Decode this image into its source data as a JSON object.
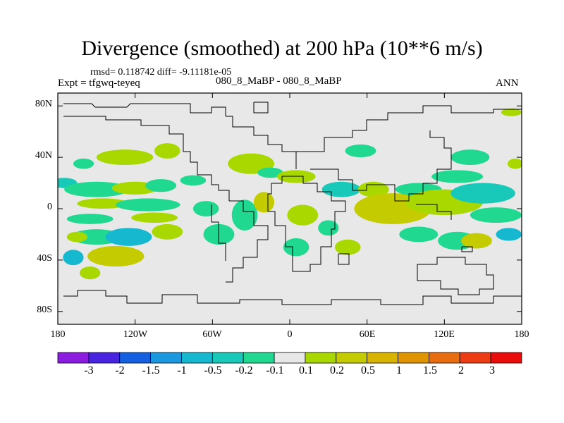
{
  "title": "Divergence (smoothed) at 200 hPa (10**6 m/s)",
  "stats_line": "rmsd= 0.118742 diff= -9.11181e-05",
  "experiment": "Expt = tfgwq-teyeq",
  "case_line": "080_8_MaBP - 080_8_MaBP",
  "season": "ANN",
  "chart_data": {
    "type": "heatmap",
    "projection": "cylindrical-equidistant",
    "xlim": [
      -180,
      180
    ],
    "ylim": [
      -90,
      90
    ],
    "lat_ticks": [
      {
        "value": 80,
        "label": "80N"
      },
      {
        "value": 40,
        "label": "40N"
      },
      {
        "value": 0,
        "label": "0"
      },
      {
        "value": -40,
        "label": "40S"
      },
      {
        "value": -80,
        "label": "80S"
      }
    ],
    "lon_ticks": [
      {
        "value": -180,
        "label": "180"
      },
      {
        "value": -120,
        "label": "120W"
      },
      {
        "value": -60,
        "label": "60W"
      },
      {
        "value": 0,
        "label": "0"
      },
      {
        "value": 60,
        "label": "60E"
      },
      {
        "value": 120,
        "label": "120E"
      },
      {
        "value": 180,
        "label": "180"
      }
    ],
    "colorbar": {
      "colors": [
        "#8c1ce0",
        "#4824e0",
        "#1460e0",
        "#1c98e0",
        "#16b8d0",
        "#18c8b8",
        "#20d890",
        "#e8e8e8",
        "#a8d800",
        "#c4cc00",
        "#d8b400",
        "#e09400",
        "#e86c10",
        "#ee3c14",
        "#ec0c0c"
      ],
      "labels": [
        "-3",
        "-2",
        "-1.5",
        "-1",
        "-0.5",
        "-0.2",
        "-0.1",
        "0.1",
        "0.2",
        "0.5",
        "1",
        "1.5",
        "2",
        "3"
      ]
    },
    "blobs": [
      {
        "lon": -160,
        "lat": 35,
        "rx": 8,
        "ry": 4,
        "color": "#20d890"
      },
      {
        "lon": -128,
        "lat": 40,
        "rx": 22,
        "ry": 6,
        "color": "#a8d800"
      },
      {
        "lon": -95,
        "lat": 45,
        "rx": 10,
        "ry": 6,
        "color": "#a8d800"
      },
      {
        "lon": -175,
        "lat": 20,
        "rx": 10,
        "ry": 4,
        "color": "#18c8b8"
      },
      {
        "lon": -150,
        "lat": 15,
        "rx": 25,
        "ry": 6,
        "color": "#20d890"
      },
      {
        "lon": -120,
        "lat": 16,
        "rx": 18,
        "ry": 5,
        "color": "#a8d800"
      },
      {
        "lon": -100,
        "lat": 18,
        "rx": 12,
        "ry": 5,
        "color": "#20d890"
      },
      {
        "lon": -145,
        "lat": 4,
        "rx": 20,
        "ry": 4,
        "color": "#a8d800"
      },
      {
        "lon": -110,
        "lat": 3,
        "rx": 25,
        "ry": 5,
        "color": "#20d890"
      },
      {
        "lon": -155,
        "lat": -8,
        "rx": 18,
        "ry": 4,
        "color": "#20d890"
      },
      {
        "lon": -105,
        "lat": -7,
        "rx": 18,
        "ry": 4,
        "color": "#a8d800"
      },
      {
        "lon": -150,
        "lat": -22,
        "rx": 20,
        "ry": 6,
        "color": "#20d890"
      },
      {
        "lon": -125,
        "lat": -22,
        "rx": 18,
        "ry": 7,
        "color": "#16b8d0"
      },
      {
        "lon": -95,
        "lat": -18,
        "rx": 12,
        "ry": 6,
        "color": "#a8d800"
      },
      {
        "lon": -135,
        "lat": -37,
        "rx": 22,
        "ry": 8,
        "color": "#c4cc00"
      },
      {
        "lon": -168,
        "lat": -38,
        "rx": 8,
        "ry": 6,
        "color": "#16b8d0"
      },
      {
        "lon": -155,
        "lat": -50,
        "rx": 8,
        "ry": 5,
        "color": "#a8d800"
      },
      {
        "lon": -165,
        "lat": -22,
        "rx": 8,
        "ry": 4,
        "color": "#a8d800"
      },
      {
        "lon": -75,
        "lat": 22,
        "rx": 10,
        "ry": 4,
        "color": "#20d890"
      },
      {
        "lon": -65,
        "lat": 0,
        "rx": 10,
        "ry": 6,
        "color": "#20d890"
      },
      {
        "lon": -55,
        "lat": -20,
        "rx": 12,
        "ry": 8,
        "color": "#20d890"
      },
      {
        "lon": -35,
        "lat": -5,
        "rx": 10,
        "ry": 12,
        "color": "#20d890"
      },
      {
        "lon": -30,
        "lat": 35,
        "rx": 18,
        "ry": 8,
        "color": "#a8d800"
      },
      {
        "lon": -15,
        "lat": 28,
        "rx": 10,
        "ry": 4,
        "color": "#20d890"
      },
      {
        "lon": -20,
        "lat": 5,
        "rx": 8,
        "ry": 8,
        "color": "#c4cc00"
      },
      {
        "lon": 10,
        "lat": -5,
        "rx": 12,
        "ry": 8,
        "color": "#a8d800"
      },
      {
        "lon": 5,
        "lat": -30,
        "rx": 10,
        "ry": 7,
        "color": "#20d890"
      },
      {
        "lon": 30,
        "lat": -15,
        "rx": 8,
        "ry": 6,
        "color": "#20d890"
      },
      {
        "lon": 5,
        "lat": 25,
        "rx": 15,
        "ry": 5,
        "color": "#a8d800"
      },
      {
        "lon": 40,
        "lat": 15,
        "rx": 15,
        "ry": 6,
        "color": "#18c8b8"
      },
      {
        "lon": 45,
        "lat": -30,
        "rx": 10,
        "ry": 6,
        "color": "#a8d800"
      },
      {
        "lon": 55,
        "lat": 45,
        "rx": 12,
        "ry": 5,
        "color": "#20d890"
      },
      {
        "lon": 65,
        "lat": 15,
        "rx": 12,
        "ry": 6,
        "color": "#a8d800"
      },
      {
        "lon": 80,
        "lat": 0,
        "rx": 30,
        "ry": 12,
        "color": "#c4cc00"
      },
      {
        "lon": 100,
        "lat": 15,
        "rx": 18,
        "ry": 5,
        "color": "#20d890"
      },
      {
        "lon": 120,
        "lat": 5,
        "rx": 30,
        "ry": 10,
        "color": "#a8d800"
      },
      {
        "lon": 130,
        "lat": 25,
        "rx": 20,
        "ry": 5,
        "color": "#20d890"
      },
      {
        "lon": 140,
        "lat": 40,
        "rx": 15,
        "ry": 6,
        "color": "#20d890"
      },
      {
        "lon": 150,
        "lat": 12,
        "rx": 25,
        "ry": 8,
        "color": "#18c8b8"
      },
      {
        "lon": 160,
        "lat": -5,
        "rx": 20,
        "ry": 6,
        "color": "#20d890"
      },
      {
        "lon": 130,
        "lat": -25,
        "rx": 15,
        "ry": 7,
        "color": "#20d890"
      },
      {
        "lon": 145,
        "lat": -25,
        "rx": 12,
        "ry": 6,
        "color": "#c4cc00"
      },
      {
        "lon": 100,
        "lat": -20,
        "rx": 15,
        "ry": 6,
        "color": "#20d890"
      },
      {
        "lon": 170,
        "lat": -20,
        "rx": 10,
        "ry": 5,
        "color": "#16b8d0"
      },
      {
        "lon": 175,
        "lat": 35,
        "rx": 6,
        "ry": 4,
        "color": "#a8d800"
      },
      {
        "lon": 172,
        "lat": 75,
        "rx": 8,
        "ry": 3,
        "color": "#a8d800"
      }
    ]
  }
}
